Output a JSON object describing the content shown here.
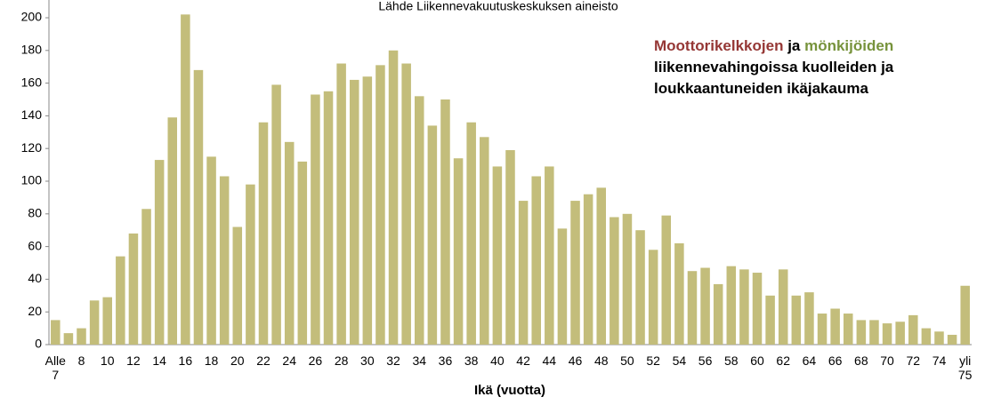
{
  "chart_data": {
    "type": "bar",
    "title": "Lähde Liikennevakuutuskeskuksen aineisto",
    "annotation": {
      "part1": "Moottorikelkkojen",
      "part2": " ja ",
      "part3": "mönkijöiden",
      "part4": "liikennevahingoissa kuolleiden ja loukkaantuneiden ikäjakauma"
    },
    "x_label": "Ikä (vuotta)",
    "categories": [
      "Alle 7",
      null,
      "8",
      null,
      "10",
      null,
      "12",
      null,
      "14",
      null,
      "16",
      null,
      "18",
      null,
      "20",
      null,
      "22",
      null,
      "24",
      null,
      "26",
      null,
      "28",
      null,
      "30",
      null,
      "32",
      null,
      "34",
      null,
      "36",
      null,
      "38",
      null,
      "40",
      null,
      "42",
      null,
      "44",
      null,
      "46",
      null,
      "48",
      null,
      "50",
      null,
      "52",
      null,
      "54",
      null,
      "56",
      null,
      "58",
      null,
      "60",
      null,
      "62",
      null,
      "64",
      null,
      "66",
      null,
      "68",
      null,
      "70",
      null,
      "72",
      null,
      "74",
      null,
      "yli 75"
    ],
    "values": [
      15,
      7,
      10,
      27,
      29,
      54,
      68,
      83,
      113,
      139,
      202,
      168,
      115,
      103,
      72,
      98,
      136,
      159,
      124,
      112,
      153,
      155,
      172,
      162,
      164,
      171,
      180,
      172,
      152,
      134,
      150,
      114,
      136,
      127,
      109,
      119,
      88,
      103,
      109,
      71,
      88,
      92,
      96,
      78,
      80,
      70,
      58,
      79,
      62,
      45,
      47,
      37,
      48,
      46,
      44,
      30,
      46,
      30,
      32,
      19,
      22,
      19,
      15,
      15,
      13,
      14,
      18,
      10,
      8,
      6,
      36
    ],
    "color": "#c3bd7b",
    "ylim": [
      0,
      200
    ],
    "yticks": [
      0,
      20,
      40,
      60,
      80,
      100,
      120,
      140,
      160,
      180,
      200
    ],
    "grid": false
  }
}
